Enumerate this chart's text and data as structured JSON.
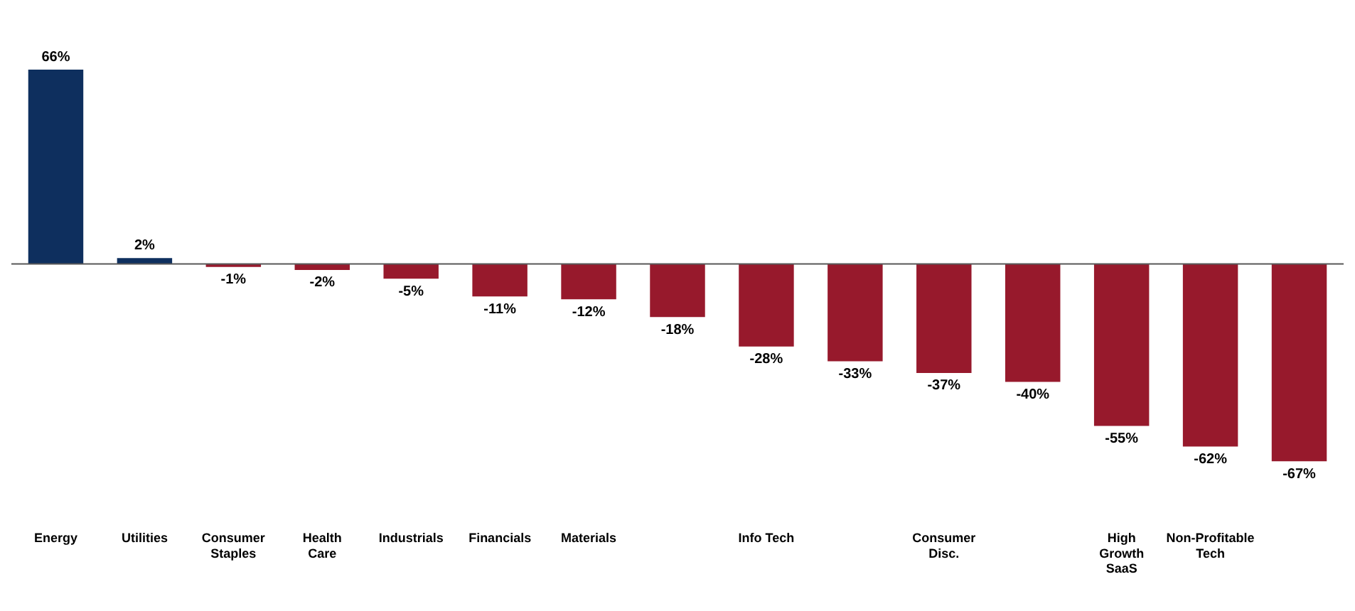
{
  "chart_data": {
    "type": "bar",
    "categories": [
      "Energy",
      "Utilities",
      "Consumer Staples",
      "Health Care",
      "Industrials",
      "Financials",
      "Materials",
      null,
      "Info Tech",
      null,
      "Consumer Disc.",
      null,
      "High Growth SaaS",
      "Non-Profitable Tech",
      null
    ],
    "values": [
      66,
      2,
      -1,
      -2,
      -5,
      -11,
      -12,
      -18,
      -28,
      -33,
      -37,
      -40,
      -55,
      -62,
      -67
    ],
    "colors": [
      "#0e2f5e",
      "#0e2f5e",
      "#97192c",
      "#97192c",
      "#97192c",
      "#97192c",
      "#97192c",
      "#97192c",
      "#97192c",
      "#97192c",
      "#97192c",
      "#97192c",
      "#97192c",
      "#97192c",
      "#97192c"
    ],
    "value_labels": [
      "66%",
      "2%",
      "-1%",
      "-2%",
      "-5%",
      "-11%",
      "-12%",
      "-18%",
      "-28%",
      "-33%",
      "-37%",
      "-40%",
      "-55%",
      "-62%",
      "-67%"
    ],
    "grid": false,
    "legend": false
  }
}
